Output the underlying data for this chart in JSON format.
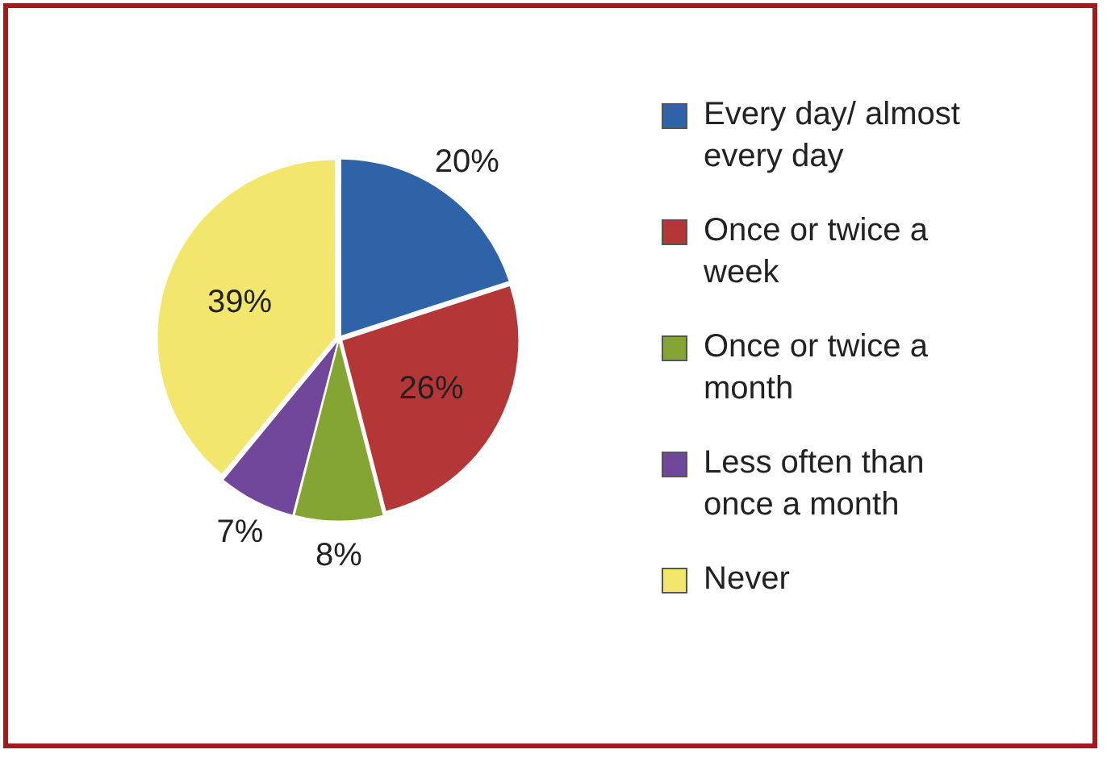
{
  "chart_data": {
    "type": "pie",
    "categories": [
      "Every day/ almost every day",
      "Once or twice a week",
      "Once or twice a month",
      "Less often than once a month",
      "Never"
    ],
    "values": [
      20,
      26,
      8,
      7,
      39
    ],
    "colors": [
      "#2f63a8",
      "#b53636",
      "#84a534",
      "#70479a",
      "#f2e66c"
    ],
    "value_labels": [
      "20%",
      "26%",
      "8%",
      "7%",
      "39%"
    ],
    "legend": "right"
  }
}
